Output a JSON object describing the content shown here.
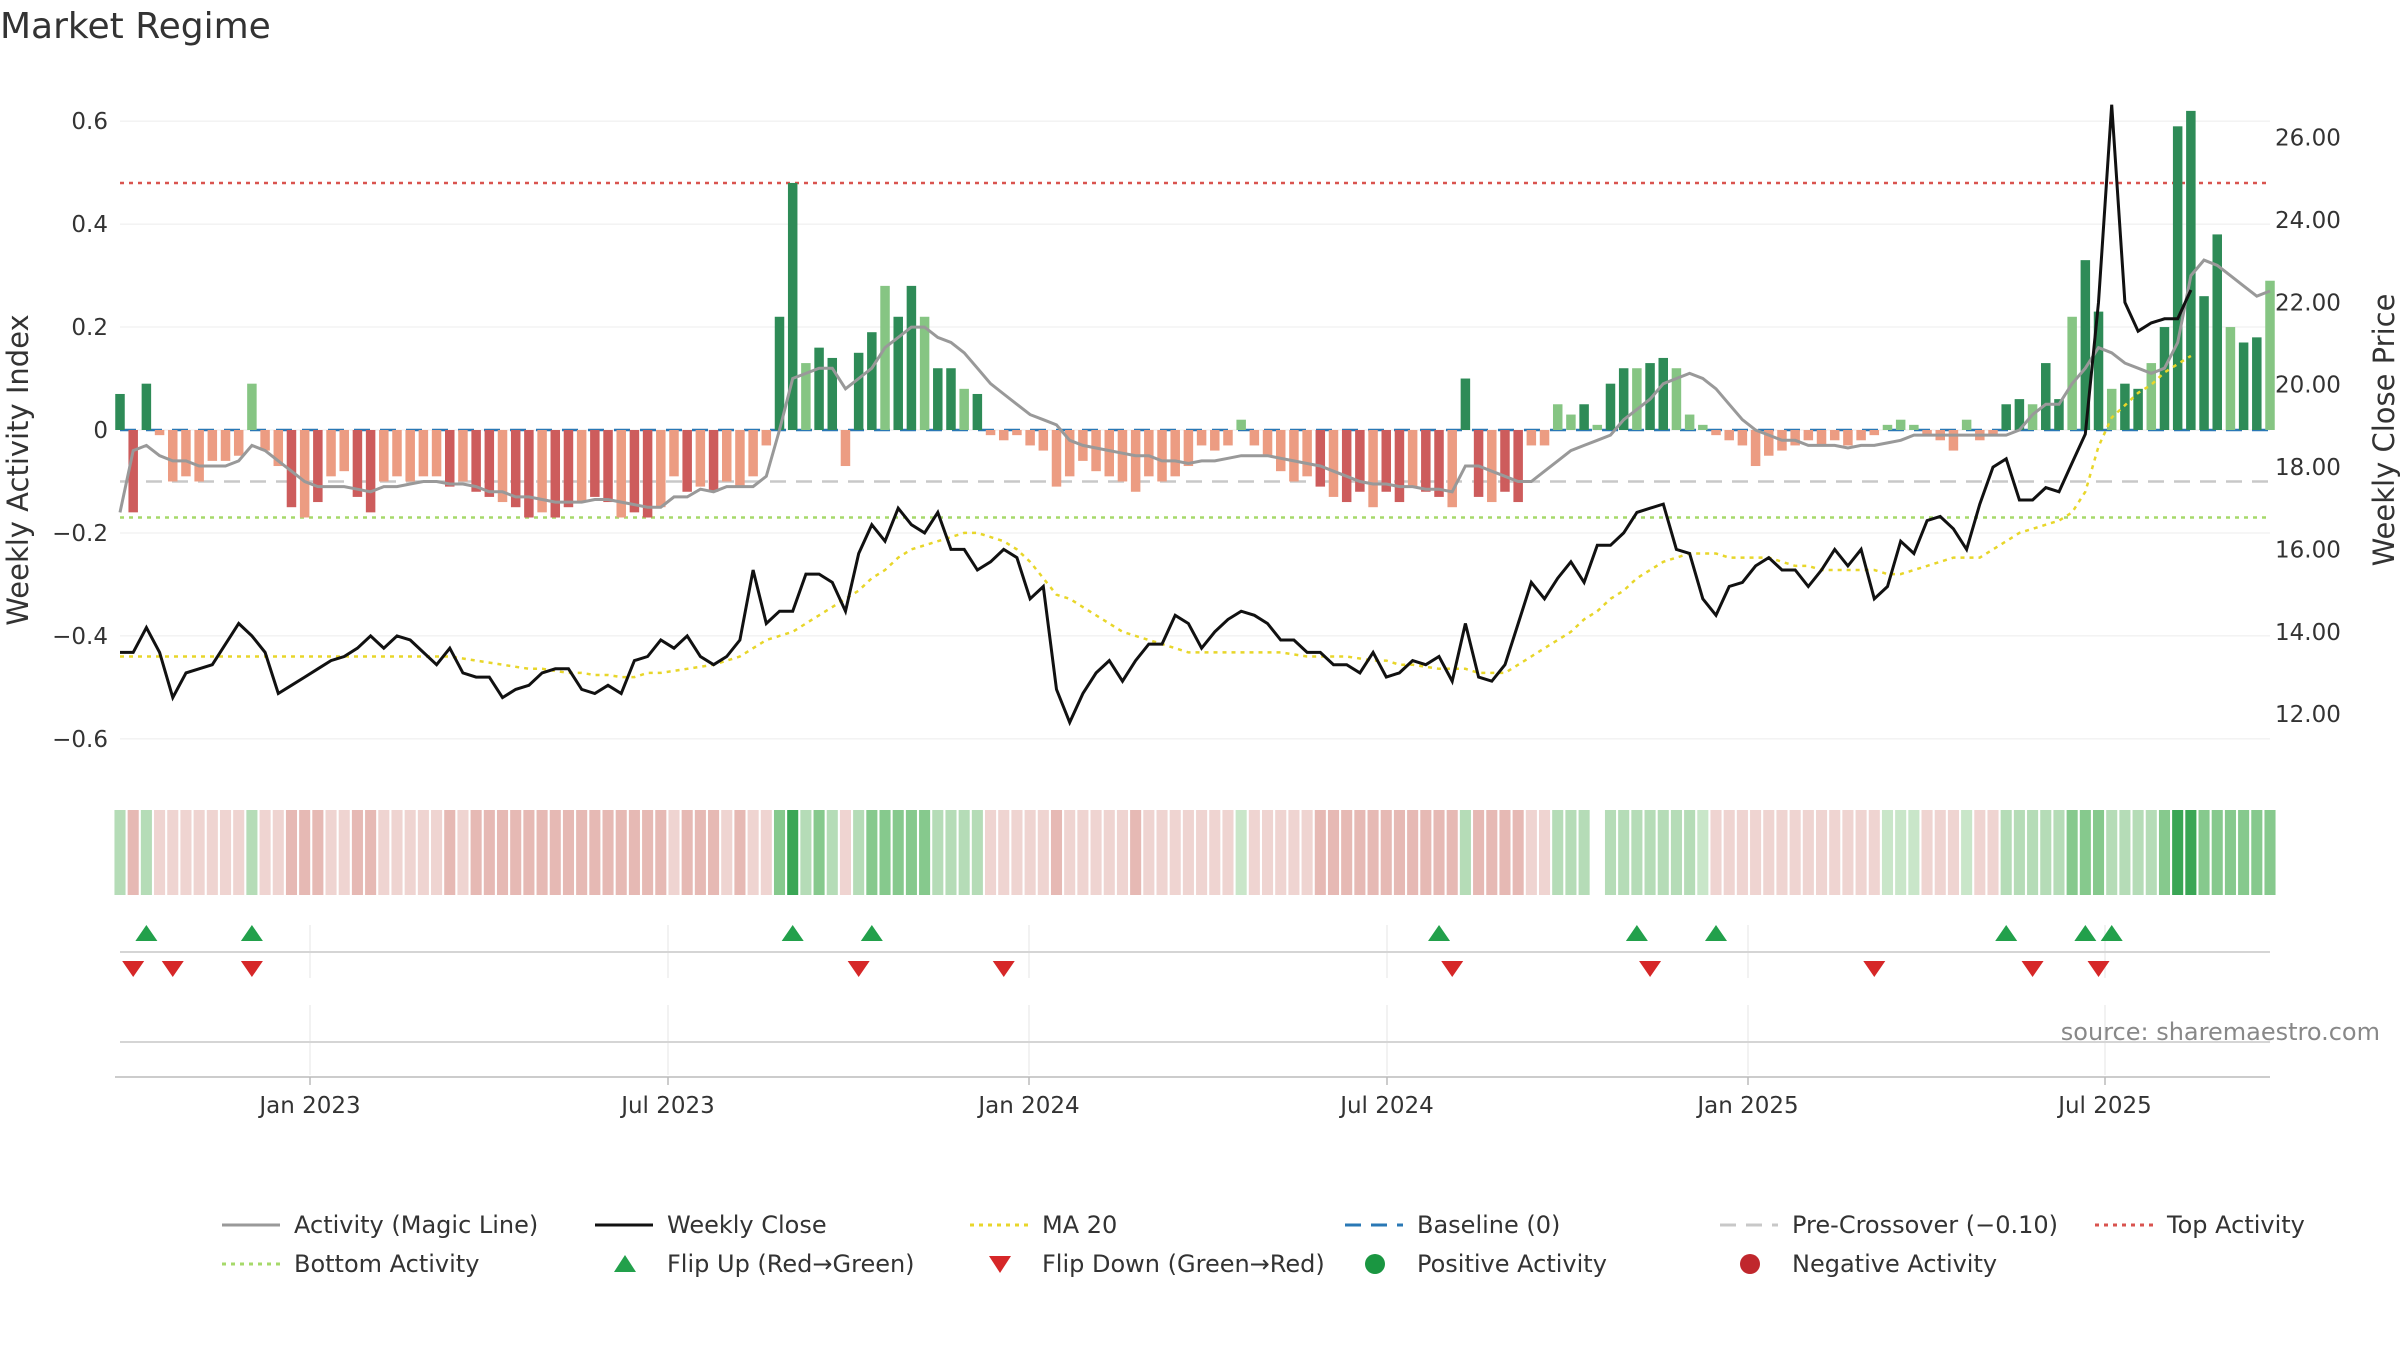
{
  "chart_data": {
    "type": "bar",
    "title": "Market Regime",
    "ylabel_left": "Weekly Activity Index",
    "ylabel_right": "Weekly Close Price",
    "source": "source: sharemaestro.com",
    "left_axis": {
      "range": [
        -0.68,
        0.68
      ],
      "ticks": [
        0.6,
        0.4,
        0.2,
        0,
        -0.2,
        -0.4,
        -0.6
      ],
      "tick_labels": [
        "0.6",
        "0.4",
        "0.2",
        "0",
        "−0.2",
        "−0.4",
        "−0.6"
      ]
    },
    "right_axis": {
      "range": [
        10.4,
        27.4
      ],
      "ticks": [
        26,
        24,
        22,
        20,
        18,
        16,
        14,
        12
      ],
      "tick_labels": [
        "26.00",
        "24.00",
        "22.00",
        "20.00",
        "18.00",
        "16.00",
        "14.00",
        "12.00"
      ]
    },
    "x_ticks": [
      "Jan 2023",
      "Jul 2023",
      "Jan 2024",
      "Jul 2024",
      "Jan 2025",
      "Jul 2025"
    ],
    "reference_lines": {
      "baseline": 0,
      "pre_crossover": -0.1,
      "top_activity": 0.48,
      "bottom_activity": -0.17
    },
    "activity": [
      0.07,
      -0.16,
      0.09,
      -0.01,
      -0.1,
      -0.09,
      -0.1,
      -0.06,
      -0.06,
      -0.05,
      0.09,
      -0.04,
      -0.07,
      -0.15,
      -0.17,
      -0.14,
      -0.09,
      -0.08,
      -0.13,
      -0.16,
      -0.1,
      -0.09,
      -0.1,
      -0.09,
      -0.09,
      -0.11,
      -0.1,
      -0.12,
      -0.13,
      -0.14,
      -0.15,
      -0.17,
      -0.16,
      -0.17,
      -0.15,
      -0.14,
      -0.13,
      -0.14,
      -0.17,
      -0.16,
      -0.17,
      -0.15,
      -0.09,
      -0.12,
      -0.11,
      -0.12,
      -0.1,
      -0.11,
      -0.09,
      -0.03,
      0.22,
      0.48,
      0.13,
      0.16,
      0.14,
      -0.07,
      0.15,
      0.19,
      0.28,
      0.22,
      0.28,
      0.22,
      0.12,
      0.12,
      0.08,
      0.07,
      -0.01,
      -0.02,
      -0.01,
      -0.03,
      -0.04,
      -0.11,
      -0.09,
      -0.06,
      -0.08,
      -0.09,
      -0.1,
      -0.12,
      -0.09,
      -0.1,
      -0.09,
      -0.07,
      -0.03,
      -0.04,
      -0.03,
      0.02,
      -0.03,
      -0.05,
      -0.08,
      -0.1,
      -0.09,
      -0.11,
      -0.13,
      -0.14,
      -0.12,
      -0.15,
      -0.12,
      -0.14,
      -0.11,
      -0.12,
      -0.13,
      -0.15,
      0.1,
      -0.13,
      -0.14,
      -0.12,
      -0.14,
      -0.03,
      -0.03,
      0.05,
      0.03,
      0.05,
      0.01,
      0.09,
      0.12,
      0.12,
      0.13,
      0.14,
      0.12,
      0.03,
      0.01,
      -0.01,
      -0.02,
      -0.03,
      -0.07,
      -0.05,
      -0.04,
      -0.03,
      -0.02,
      -0.03,
      -0.02,
      -0.03,
      -0.02,
      -0.01,
      0.01,
      0.02,
      0.01,
      -0.01,
      -0.02,
      -0.04,
      0.02,
      -0.02,
      -0.01,
      0.05,
      0.06,
      0.05,
      0.13,
      0.06,
      0.22,
      0.33,
      0.23,
      0.08,
      0.09,
      0.08,
      0.13,
      0.2,
      0.59,
      0.62,
      0.26,
      0.38,
      0.2,
      0.17,
      0.18,
      0.29
    ],
    "magic_line": [
      -0.16,
      -0.04,
      -0.03,
      -0.05,
      -0.06,
      -0.06,
      -0.07,
      -0.07,
      -0.07,
      -0.06,
      -0.03,
      -0.04,
      -0.06,
      -0.08,
      -0.1,
      -0.11,
      -0.11,
      -0.11,
      -0.115,
      -0.12,
      -0.11,
      -0.11,
      -0.105,
      -0.1,
      -0.1,
      -0.105,
      -0.105,
      -0.11,
      -0.12,
      -0.12,
      -0.13,
      -0.13,
      -0.135,
      -0.14,
      -0.14,
      -0.14,
      -0.135,
      -0.135,
      -0.14,
      -0.145,
      -0.15,
      -0.15,
      -0.13,
      -0.13,
      -0.115,
      -0.12,
      -0.11,
      -0.11,
      -0.11,
      -0.09,
      0.0,
      0.1,
      0.11,
      0.12,
      0.12,
      0.08,
      0.1,
      0.12,
      0.16,
      0.18,
      0.2,
      0.2,
      0.18,
      0.17,
      0.15,
      0.12,
      0.09,
      0.07,
      0.05,
      0.03,
      0.02,
      0.01,
      -0.02,
      -0.03,
      -0.035,
      -0.04,
      -0.045,
      -0.05,
      -0.05,
      -0.06,
      -0.06,
      -0.065,
      -0.06,
      -0.06,
      -0.055,
      -0.05,
      -0.05,
      -0.05,
      -0.055,
      -0.06,
      -0.065,
      -0.07,
      -0.08,
      -0.09,
      -0.1,
      -0.105,
      -0.105,
      -0.11,
      -0.11,
      -0.115,
      -0.115,
      -0.12,
      -0.07,
      -0.07,
      -0.08,
      -0.09,
      -0.1,
      -0.1,
      -0.08,
      -0.06,
      -0.04,
      -0.03,
      -0.02,
      -0.01,
      0.02,
      0.04,
      0.06,
      0.09,
      0.1,
      0.11,
      0.1,
      0.08,
      0.05,
      0.02,
      0.0,
      -0.01,
      -0.02,
      -0.02,
      -0.03,
      -0.03,
      -0.03,
      -0.035,
      -0.03,
      -0.03,
      -0.025,
      -0.02,
      -0.01,
      -0.01,
      -0.01,
      -0.01,
      -0.01,
      -0.01,
      -0.01,
      -0.01,
      0.0,
      0.03,
      0.05,
      0.05,
      0.09,
      0.12,
      0.16,
      0.15,
      0.13,
      0.12,
      0.11,
      0.12,
      0.17,
      0.3,
      0.33,
      0.32,
      0.3,
      0.28,
      0.26,
      0.27
    ],
    "weekly_close": [
      13.5,
      13.5,
      14.1,
      13.5,
      12.4,
      13.0,
      13.1,
      13.2,
      13.7,
      14.2,
      13.9,
      13.5,
      12.5,
      12.7,
      12.9,
      13.1,
      13.3,
      13.4,
      13.6,
      13.9,
      13.6,
      13.9,
      13.8,
      13.5,
      13.2,
      13.6,
      13.0,
      12.9,
      12.9,
      12.4,
      12.6,
      12.7,
      13.0,
      13.1,
      13.1,
      12.6,
      12.5,
      12.7,
      12.5,
      13.3,
      13.4,
      13.8,
      13.6,
      13.9,
      13.4,
      13.2,
      13.4,
      13.8,
      15.5,
      14.2,
      14.5,
      14.5,
      15.4,
      15.4,
      15.2,
      14.5,
      15.9,
      16.6,
      16.2,
      17.0,
      16.6,
      16.4,
      16.9,
      16.0,
      16.0,
      15.5,
      15.7,
      16.0,
      15.8,
      14.8,
      15.1,
      12.6,
      11.8,
      12.5,
      13.0,
      13.3,
      12.8,
      13.3,
      13.7,
      13.7,
      14.4,
      14.2,
      13.6,
      14.0,
      14.3,
      14.5,
      14.4,
      14.2,
      13.8,
      13.8,
      13.5,
      13.5,
      13.2,
      13.2,
      13.0,
      13.5,
      12.9,
      13.0,
      13.3,
      13.2,
      13.4,
      12.8,
      14.2,
      12.9,
      12.8,
      13.2,
      14.2,
      15.2,
      14.8,
      15.3,
      15.7,
      15.2,
      16.1,
      16.1,
      16.4,
      16.9,
      17.0,
      17.1,
      16.0,
      15.9,
      14.8,
      14.4,
      15.1,
      15.2,
      15.6,
      15.8,
      15.5,
      15.5,
      15.1,
      15.5,
      16.0,
      15.6,
      16.0,
      14.8,
      15.1,
      16.2,
      15.9,
      16.7,
      16.8,
      16.5,
      16.0,
      17.1,
      18.0,
      18.2,
      17.2,
      17.2,
      17.5,
      17.4,
      18.1,
      18.8,
      22.0,
      26.8,
      22.0,
      21.3,
      21.5,
      21.6,
      21.6,
      22.3
    ],
    "ma20": [
      13.4,
      13.4,
      13.4,
      13.4,
      13.4,
      13.4,
      13.4,
      13.4,
      13.4,
      13.4,
      13.4,
      13.4,
      13.4,
      13.4,
      13.4,
      13.4,
      13.4,
      13.4,
      13.4,
      13.4,
      13.4,
      13.4,
      13.4,
      13.4,
      13.4,
      13.4,
      13.35,
      13.3,
      13.25,
      13.2,
      13.15,
      13.1,
      13.1,
      13.05,
      13.0,
      13.0,
      12.95,
      12.95,
      12.9,
      12.9,
      13.0,
      13.0,
      13.05,
      13.1,
      13.15,
      13.2,
      13.3,
      13.4,
      13.6,
      13.8,
      13.9,
      14.0,
      14.2,
      14.4,
      14.6,
      14.8,
      15.0,
      15.3,
      15.5,
      15.8,
      16.0,
      16.1,
      16.2,
      16.3,
      16.4,
      16.4,
      16.3,
      16.2,
      16.0,
      15.7,
      15.3,
      14.9,
      14.8,
      14.6,
      14.4,
      14.2,
      14.0,
      13.9,
      13.8,
      13.7,
      13.6,
      13.5,
      13.5,
      13.5,
      13.5,
      13.5,
      13.5,
      13.5,
      13.5,
      13.45,
      13.4,
      13.4,
      13.4,
      13.4,
      13.35,
      13.3,
      13.3,
      13.2,
      13.2,
      13.15,
      13.1,
      13.1,
      13.1,
      13.0,
      13.0,
      13.0,
      13.2,
      13.4,
      13.6,
      13.8,
      14.0,
      14.3,
      14.5,
      14.8,
      15.0,
      15.3,
      15.5,
      15.7,
      15.8,
      15.9,
      15.9,
      15.9,
      15.8,
      15.8,
      15.8,
      15.8,
      15.7,
      15.6,
      15.6,
      15.5,
      15.5,
      15.5,
      15.5,
      15.5,
      15.4,
      15.4,
      15.5,
      15.6,
      15.7,
      15.8,
      15.8,
      15.8,
      16.0,
      16.2,
      16.4,
      16.5,
      16.6,
      16.7,
      16.9,
      17.4,
      18.5,
      19.2,
      19.5,
      19.8,
      20.0,
      20.3,
      20.5,
      20.7
    ],
    "flip_up": [
      2,
      10,
      51,
      57,
      100,
      115,
      121,
      143,
      149,
      151
    ],
    "flip_down": [
      1,
      4,
      10,
      56,
      67,
      101,
      116,
      133,
      145,
      150
    ],
    "legend": [
      {
        "label": "Activity (Magic Line)",
        "kind": "line",
        "color": "#999999"
      },
      {
        "label": "Weekly Close",
        "kind": "line",
        "color": "#111111"
      },
      {
        "label": "MA 20",
        "kind": "dotted",
        "color": "#e8d62a"
      },
      {
        "label": "Baseline (0)",
        "kind": "dashed",
        "color": "#2a78b5"
      },
      {
        "label": "Pre-Crossover (−0.10)",
        "kind": "dashed",
        "color": "#c8c8c8"
      },
      {
        "label": "Top Activity",
        "kind": "dotted",
        "color": "#d9534f"
      },
      {
        "label": "Bottom Activity",
        "kind": "dotted",
        "color": "#a6d96a"
      },
      {
        "label": "Flip Up (Red→Green)",
        "kind": "tri-up",
        "color": "#22a04b"
      },
      {
        "label": "Flip Down (Green→Red)",
        "kind": "tri-down",
        "color": "#d62728"
      },
      {
        "label": "Positive Activity",
        "kind": "dot",
        "color": "#1a9641"
      },
      {
        "label": "Negative Activity",
        "kind": "dot",
        "color": "#c0272d"
      }
    ]
  },
  "colors": {
    "pos_dark": "#2e8b57",
    "pos_light": "#86c583",
    "neg_dark": "#cd5c5c",
    "neg_light": "#ec9c82",
    "baseline": "#2a78b5",
    "top": "#d9534f",
    "bottom": "#a6d96a",
    "pre": "#c8c8c8",
    "close": "#111111",
    "ma": "#e8d62a",
    "magic": "#999999"
  }
}
